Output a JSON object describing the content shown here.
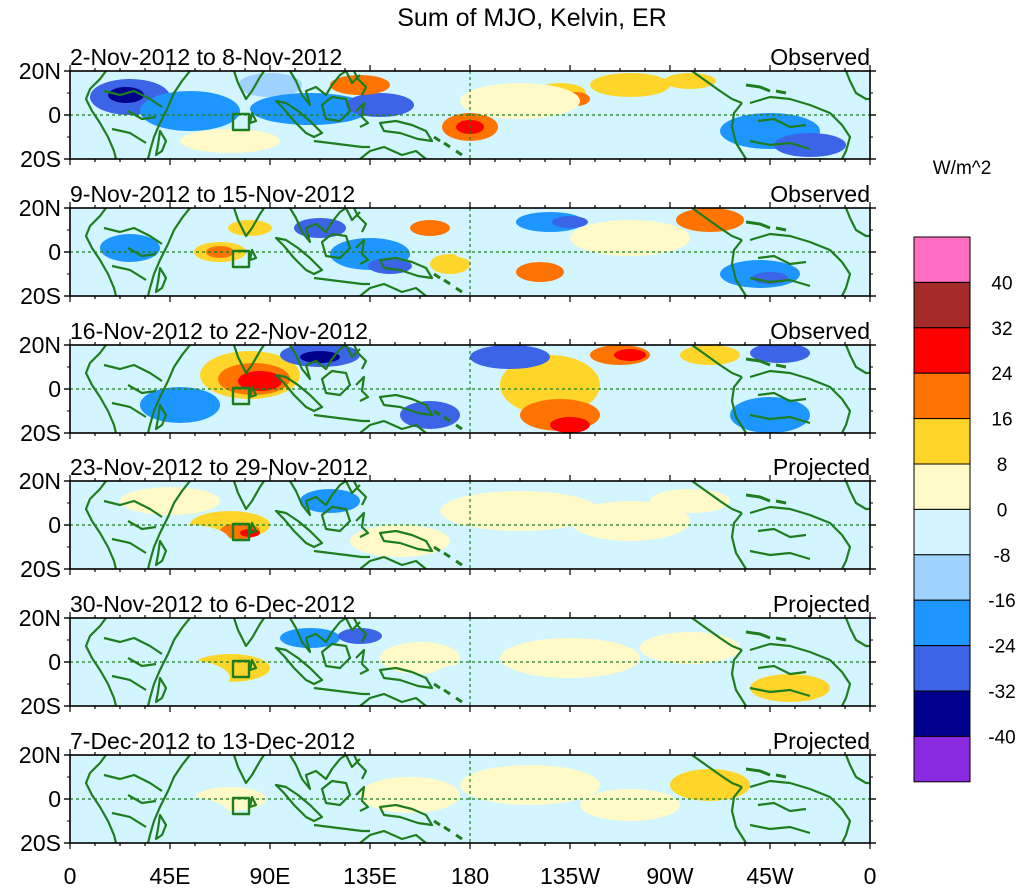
{
  "title": "Sum of MJO, Kelvin, ER",
  "units": "W/m^2",
  "colorbar": {
    "colors": [
      "#ff6ec0",
      "#a52a2a",
      "#ff0000",
      "#ff7400",
      "#ffd52a",
      "#fffac8",
      "#d2f5ff",
      "#a0d2ff",
      "#1e96ff",
      "#3c64e6",
      "#00008c",
      "#8a2be2"
    ],
    "labels": [
      "40",
      "32",
      "24",
      "16",
      "8",
      "0",
      "-8",
      "-16",
      "-24",
      "-32",
      "-40"
    ]
  },
  "lat_labels": [
    "20N",
    "0",
    "20S"
  ],
  "lon_labels": [
    "0",
    "45E",
    "90E",
    "135E",
    "180",
    "135W",
    "90W",
    "45W",
    "0"
  ],
  "panels": [
    {
      "dates": "2-Nov-2012 to 8-Nov-2012",
      "status": "Observed"
    },
    {
      "dates": "9-Nov-2012 to 15-Nov-2012",
      "status": "Observed"
    },
    {
      "dates": "16-Nov-2012 to 22-Nov-2012",
      "status": "Observed"
    },
    {
      "dates": "23-Nov-2012 to 29-Nov-2012",
      "status": "Projected"
    },
    {
      "dates": "30-Nov-2012 to 6-Dec-2012",
      "status": "Projected"
    },
    {
      "dates": "7-Dec-2012 to 13-Dec-2012",
      "status": "Projected"
    }
  ],
  "colors": {
    "coast": "#1e7d1e",
    "frame": "#000000",
    "equator": "#1e7d1e"
  }
}
